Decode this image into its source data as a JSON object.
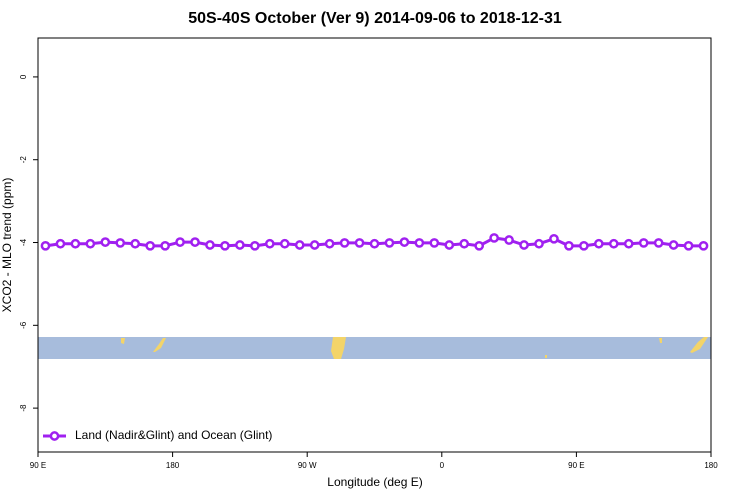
{
  "chart_data": {
    "type": "line",
    "title": "50S-40S October (Ver 9)   2014-09-06 to 2018-12-31",
    "x_label": "Longitude (deg E)",
    "y_label": "XCO2 - MLO trend (ppm)",
    "x": [
      95,
      105,
      115,
      125,
      135,
      145,
      155,
      165,
      175,
      185,
      195,
      205,
      215,
      225,
      235,
      245,
      255,
      265,
      275,
      285,
      295,
      305,
      315,
      325,
      335,
      345,
      355,
      365,
      375,
      385,
      395,
      405,
      415,
      425,
      435,
      445,
      455,
      465,
      475,
      485,
      495,
      505,
      515,
      525,
      535
    ],
    "series": [
      {
        "name": "Land (Nadir&Glint) and Ocean (Glint)",
        "color": "#a020f0",
        "values": [
          -4.08,
          -4.03,
          -4.03,
          -4.03,
          -3.99,
          -4.01,
          -4.03,
          -4.08,
          -4.08,
          -3.99,
          -3.99,
          -4.06,
          -4.08,
          -4.06,
          -4.08,
          -4.03,
          -4.03,
          -4.06,
          -4.06,
          -4.03,
          -4.01,
          -4.01,
          -4.03,
          -4.01,
          -3.99,
          -4.01,
          -4.01,
          -4.06,
          -4.03,
          -4.08,
          -3.89,
          -3.94,
          -4.06,
          -4.03,
          -3.91,
          -4.08,
          -4.08,
          -4.03,
          -4.03,
          -4.03,
          -4.01,
          -4.01,
          -4.06,
          -4.08,
          -4.08
        ]
      }
    ],
    "xlim": [
      90,
      540
    ],
    "xticks": [
      {
        "value": 90,
        "label": "90 E"
      },
      180,
      {
        "value": 270,
        "label": "90 W"
      },
      {
        "value": 360,
        "label": "0"
      },
      {
        "value": 450,
        "label": "90 E"
      },
      {
        "value": 540,
        "label": "180"
      }
    ],
    "ylim": [
      -9.06,
      0.94
    ],
    "yticks": [
      0,
      -2,
      -4,
      -6,
      -8
    ],
    "legend": "bottom-left"
  }
}
